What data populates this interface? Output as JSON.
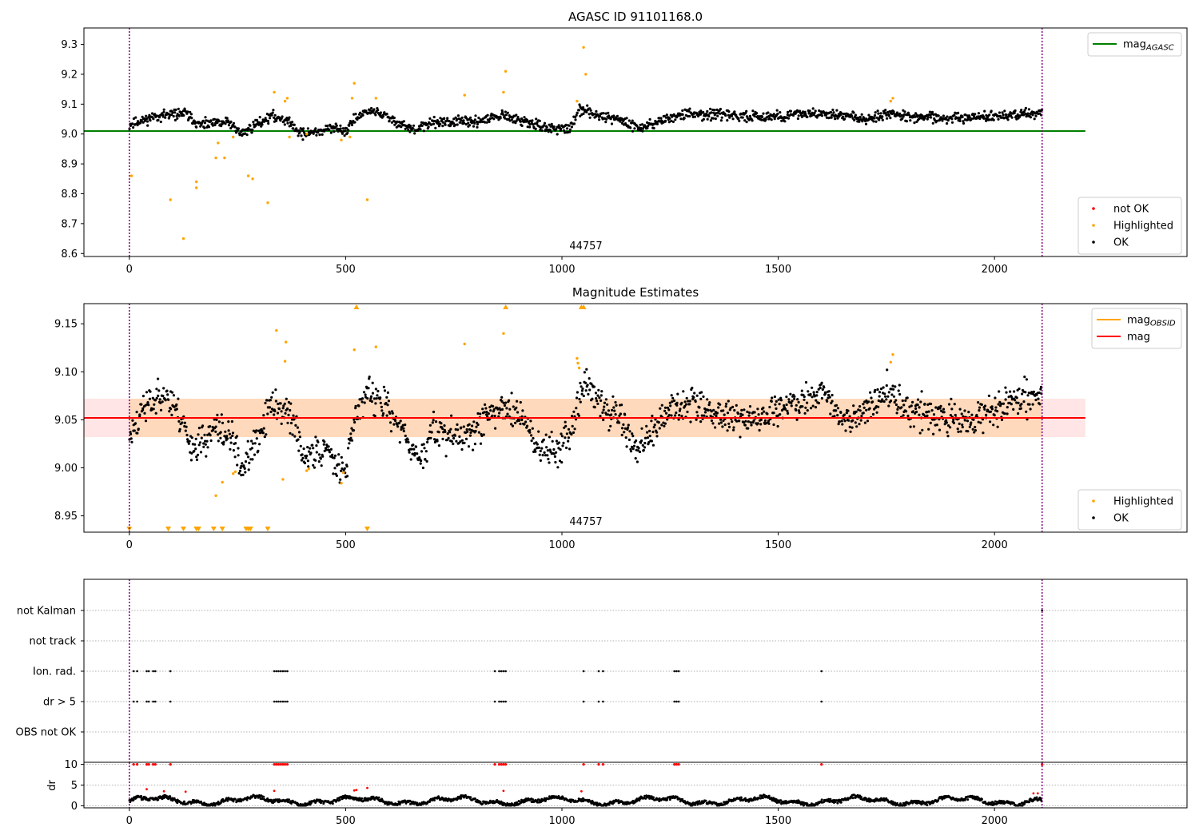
{
  "figure": {
    "width": 1500,
    "height": 1050
  },
  "chart_data": [
    {
      "type": "scatter",
      "title": "AGASC ID 91101168.0",
      "xlim": [
        -105,
        2445
      ],
      "ylim": [
        8.59,
        9.355
      ],
      "xticks": [
        0,
        500,
        1000,
        1500,
        2000
      ],
      "yticks": [
        8.6,
        8.7,
        8.8,
        8.9,
        9.0,
        9.1,
        9.2,
        9.3
      ],
      "ytick_labels": [
        "8.6",
        "8.7",
        "8.8",
        "8.9",
        "9.0",
        "9.1",
        "9.2",
        "9.3"
      ],
      "obsid_label": "44757",
      "vlines": [
        0,
        2110
      ],
      "hline": {
        "name": "mag_AGASC",
        "value": 9.01,
        "x": [
          -105,
          2210
        ],
        "color": "#008000"
      },
      "legend_upper": [
        {
          "name": "mag",
          "sub": "AGASC",
          "color": "#008000"
        }
      ],
      "legend_lower": [
        {
          "name": "not OK",
          "color": "#ff0000"
        },
        {
          "name": "Highlighted",
          "color": "#ffa500"
        },
        {
          "name": "OK",
          "color": "#000000"
        }
      ],
      "series_ok": {
        "name": "OK",
        "color": "#000000",
        "x_range": [
          0,
          2110
        ],
        "seed": 11,
        "knots": [
          [
            0,
            9.03
          ],
          [
            60,
            9.06
          ],
          [
            130,
            9.07
          ],
          [
            160,
            9.03
          ],
          [
            230,
            9.04
          ],
          [
            260,
            9.0
          ],
          [
            300,
            9.04
          ],
          [
            330,
            9.06
          ],
          [
            360,
            9.05
          ],
          [
            400,
            9.0
          ],
          [
            480,
            9.02
          ],
          [
            500,
            9.01
          ],
          [
            520,
            9.05
          ],
          [
            560,
            9.08
          ],
          [
            620,
            9.04
          ],
          [
            660,
            9.01
          ],
          [
            700,
            9.04
          ],
          [
            800,
            9.04
          ],
          [
            860,
            9.06
          ],
          [
            920,
            9.04
          ],
          [
            960,
            9.02
          ],
          [
            1020,
            9.02
          ],
          [
            1040,
            9.08
          ],
          [
            1100,
            9.06
          ],
          [
            1150,
            9.04
          ],
          [
            1180,
            9.02
          ],
          [
            1220,
            9.04
          ],
          [
            1260,
            9.06
          ],
          [
            1300,
            9.07
          ],
          [
            1400,
            9.06
          ],
          [
            1500,
            9.06
          ],
          [
            1600,
            9.07
          ],
          [
            1700,
            9.05
          ],
          [
            1760,
            9.07
          ],
          [
            1800,
            9.06
          ],
          [
            1900,
            9.05
          ],
          [
            2000,
            9.06
          ],
          [
            2110,
            9.07
          ]
        ],
        "noise": 0.012
      },
      "series_highlighted": {
        "name": "Highlighted",
        "color": "#ffa500",
        "x": [
          5,
          95,
          125,
          155,
          155,
          200,
          205,
          220,
          240,
          275,
          285,
          320,
          335,
          360,
          365,
          370,
          410,
          490,
          510,
          515,
          520,
          550,
          570,
          775,
          865,
          870,
          1035,
          1050,
          1055,
          1760,
          1765
        ],
        "y": [
          8.86,
          8.78,
          8.65,
          8.82,
          8.84,
          8.92,
          8.97,
          8.92,
          8.99,
          8.86,
          8.85,
          8.77,
          9.14,
          9.11,
          9.12,
          8.99,
          9.0,
          8.98,
          8.99,
          9.12,
          9.17,
          8.78,
          9.12,
          9.13,
          9.14,
          9.21,
          9.11,
          9.29,
          9.2,
          9.11,
          9.12
        ]
      }
    },
    {
      "type": "scatter",
      "title": "Magnitude Estimates",
      "xlim": [
        -105,
        2445
      ],
      "ylim": [
        8.933,
        9.171
      ],
      "xticks": [
        0,
        500,
        1000,
        1500,
        2000
      ],
      "yticks": [
        8.95,
        9.0,
        9.05,
        9.1,
        9.15
      ],
      "ytick_labels": [
        "8.95",
        "9.00",
        "9.05",
        "9.10",
        "9.15"
      ],
      "obsid_label": "44757",
      "vlines": [
        0,
        2110
      ],
      "mag": {
        "name": "mag",
        "value": 9.052,
        "x": [
          -105,
          2210
        ],
        "color": "#ff0000"
      },
      "mag_obsid": {
        "name": "mag_OBSID",
        "value": 9.052,
        "x": [
          0,
          2110
        ],
        "color": "#ffa500"
      },
      "band": {
        "low": 9.032,
        "high": 9.072,
        "x_full": [
          -105,
          2210
        ],
        "x_obsid": [
          0,
          2110
        ]
      },
      "legend_upper": [
        {
          "name": "mag",
          "sub": "OBSID",
          "color": "#ffa500"
        },
        {
          "name": "mag",
          "sub": "",
          "color": "#ff0000"
        }
      ],
      "legend_lower": [
        {
          "name": "Highlighted",
          "color": "#ffa500"
        },
        {
          "name": "OK",
          "color": "#000000"
        }
      ],
      "series_ok": {
        "name": "OK",
        "color": "#000000",
        "x_range": [
          0,
          2110
        ],
        "seed": 23,
        "knots": [
          [
            0,
            9.03
          ],
          [
            30,
            9.06
          ],
          [
            80,
            9.08
          ],
          [
            120,
            9.05
          ],
          [
            150,
            9.02
          ],
          [
            200,
            9.04
          ],
          [
            240,
            9.03
          ],
          [
            260,
            9.0
          ],
          [
            300,
            9.03
          ],
          [
            330,
            9.07
          ],
          [
            380,
            9.05
          ],
          [
            400,
            9.01
          ],
          [
            450,
            9.02
          ],
          [
            500,
            9.0
          ],
          [
            520,
            9.05
          ],
          [
            550,
            9.08
          ],
          [
            600,
            9.06
          ],
          [
            640,
            9.03
          ],
          [
            680,
            9.01
          ],
          [
            700,
            9.04
          ],
          [
            760,
            9.03
          ],
          [
            800,
            9.04
          ],
          [
            840,
            9.06
          ],
          [
            900,
            9.06
          ],
          [
            950,
            9.02
          ],
          [
            1000,
            9.02
          ],
          [
            1020,
            9.04
          ],
          [
            1050,
            9.09
          ],
          [
            1100,
            9.06
          ],
          [
            1140,
            9.05
          ],
          [
            1170,
            9.02
          ],
          [
            1200,
            9.03
          ],
          [
            1250,
            9.06
          ],
          [
            1300,
            9.07
          ],
          [
            1350,
            9.06
          ],
          [
            1400,
            9.05
          ],
          [
            1450,
            9.05
          ],
          [
            1500,
            9.06
          ],
          [
            1560,
            9.07
          ],
          [
            1600,
            9.08
          ],
          [
            1650,
            9.05
          ],
          [
            1700,
            9.06
          ],
          [
            1750,
            9.08
          ],
          [
            1800,
            9.06
          ],
          [
            1850,
            9.06
          ],
          [
            1900,
            9.05
          ],
          [
            1950,
            9.05
          ],
          [
            2000,
            9.06
          ],
          [
            2050,
            9.07
          ],
          [
            2110,
            9.08
          ]
        ],
        "noise": 0.012
      },
      "series_highlighted": {
        "name": "Highlighted",
        "color": "#ffa500",
        "x": [
          200,
          215,
          240,
          245,
          340,
          360,
          362,
          355,
          410,
          415,
          490,
          495,
          520,
          570,
          775,
          865,
          1035,
          1037,
          1040,
          1760,
          1765
        ],
        "y": [
          8.971,
          8.985,
          8.994,
          8.996,
          9.143,
          9.111,
          9.131,
          8.988,
          8.997,
          8.999,
          8.984,
          8.995,
          9.123,
          9.126,
          9.129,
          9.14,
          9.114,
          9.109,
          9.104,
          9.11,
          9.118
        ]
      },
      "clipped_bottom_x": [
        0,
        90,
        125,
        155,
        160,
        195,
        215,
        270,
        275,
        280,
        320,
        550
      ],
      "clipped_top_x": [
        525,
        870,
        1045,
        1050
      ]
    },
    {
      "type": "scatter",
      "title": "",
      "xlim": [
        -105,
        2445
      ],
      "categories": [
        "not Kalman",
        "not track",
        "Ion. rad.",
        "dr > 5",
        "OBS not OK"
      ],
      "vlines": [
        0,
        2110
      ],
      "flag_points": {
        "Ion. rad.": [
          10,
          18,
          40,
          45,
          55,
          60,
          95,
          335,
          340,
          345,
          350,
          355,
          360,
          365,
          845,
          855,
          860,
          865,
          870,
          1050,
          1085,
          1095,
          1260,
          1265,
          1270,
          1600
        ],
        "dr > 5": [
          10,
          18,
          40,
          45,
          55,
          60,
          95,
          335,
          340,
          345,
          350,
          355,
          360,
          365,
          845,
          855,
          860,
          865,
          870,
          1050,
          1085,
          1095,
          1260,
          1265,
          1270,
          1600
        ],
        "not Kalman": [
          2110
        ]
      }
    },
    {
      "type": "scatter",
      "title": "",
      "xlim": [
        -105,
        2445
      ],
      "ylim": [
        -0.5,
        10.5
      ],
      "ylabel": "dr",
      "yticks": [
        0,
        5,
        10
      ],
      "ytick_labels": [
        "0",
        "5",
        "10"
      ],
      "xticks": [
        0,
        500,
        1000,
        1500,
        2000
      ],
      "vlines": [
        0,
        2110
      ],
      "series_ok": {
        "name": "OK",
        "color": "#000000",
        "x_range": [
          0,
          2110
        ],
        "seed": 37
      },
      "red_at_10": [
        10,
        18,
        40,
        45,
        55,
        60,
        95,
        335,
        340,
        345,
        350,
        355,
        360,
        365,
        845,
        855,
        860,
        865,
        870,
        1050,
        1085,
        1095,
        1260,
        1265,
        1270,
        1600,
        2110
      ],
      "red_mid": [
        [
          40,
          4.0
        ],
        [
          80,
          3.5
        ],
        [
          130,
          3.4
        ],
        [
          335,
          3.6
        ],
        [
          520,
          3.7
        ],
        [
          525,
          3.8
        ],
        [
          550,
          4.3
        ],
        [
          865,
          3.6
        ],
        [
          1045,
          3.5
        ],
        [
          2090,
          3.0
        ],
        [
          2100,
          3.0
        ]
      ]
    }
  ]
}
